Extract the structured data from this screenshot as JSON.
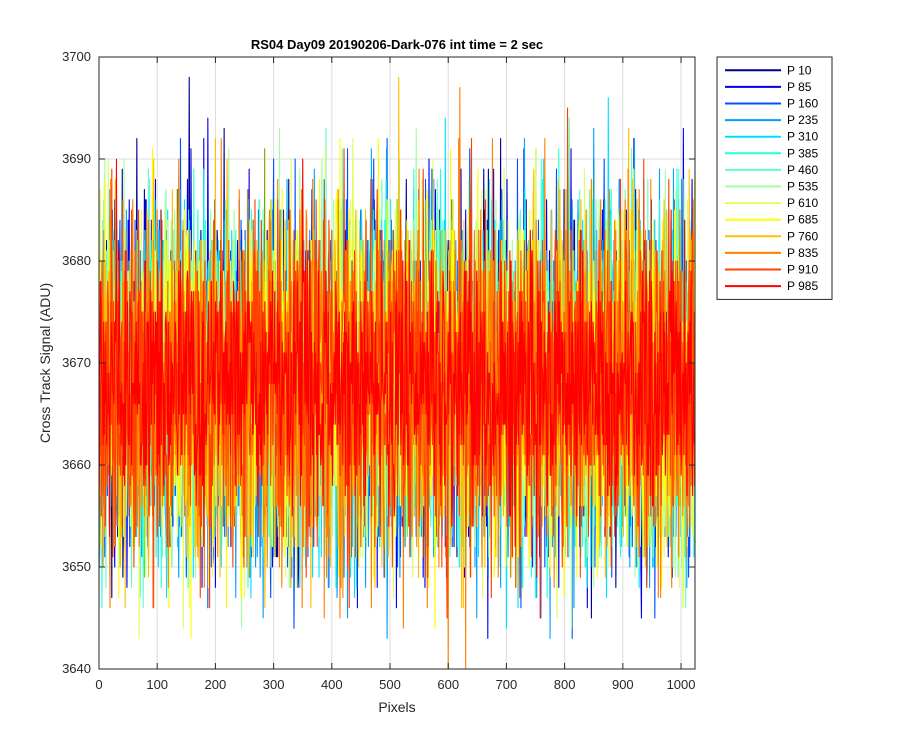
{
  "chart_data": {
    "type": "line",
    "title": "RS04 Day09 20190206-Dark-076 int time = 2 sec",
    "xlabel": "Pixels",
    "ylabel": "Cross Track Signal (ADU)",
    "xlim": [
      0,
      1024
    ],
    "ylim": [
      3640,
      3700
    ],
    "xticks": [
      0,
      100,
      200,
      300,
      400,
      500,
      600,
      700,
      800,
      900,
      1000
    ],
    "yticks": [
      3640,
      3650,
      3660,
      3670,
      3680,
      3690,
      3700
    ],
    "grid": true,
    "legend_position": "outside-right",
    "n_points": 1024,
    "series": [
      {
        "name": "P 10",
        "color": "#00008F",
        "mean": 3668,
        "std": 8.5,
        "spikes": [
          [
            155,
            3698
          ],
          [
            215,
            3693
          ],
          [
            65,
            3692
          ]
        ]
      },
      {
        "name": "P 85",
        "color": "#0000EF",
        "mean": 3668,
        "std": 8.5,
        "spikes": [
          [
            180,
            3692
          ],
          [
            258,
            3689
          ]
        ]
      },
      {
        "name": "P 160",
        "color": "#0050FF",
        "mean": 3668,
        "std": 8.5,
        "spikes": [
          [
            140,
            3692
          ],
          [
            300,
            3690
          ]
        ]
      },
      {
        "name": "P 235",
        "color": "#00A0FF",
        "mean": 3668,
        "std": 8.5,
        "spikes": [
          [
            775,
            3643
          ],
          [
            850,
            3693
          ],
          [
            282,
            3645
          ]
        ]
      },
      {
        "name": "P 310",
        "color": "#00DFFF",
        "mean": 3668,
        "std": 8.5,
        "spikes": [
          [
            700,
            3644
          ],
          [
            720,
            3646
          ]
        ]
      },
      {
        "name": "P 385",
        "color": "#20FFDF",
        "mean": 3668,
        "std": 8.5,
        "spikes": [
          [
            640,
            3690
          ],
          [
            180,
            3689
          ]
        ]
      },
      {
        "name": "P 460",
        "color": "#60FFBF",
        "mean": 3668,
        "std": 8.5,
        "spikes": [
          [
            390,
            3693
          ],
          [
            760,
            3690
          ]
        ]
      },
      {
        "name": "P 535",
        "color": "#A0FF9F",
        "mean": 3668,
        "std": 8.5,
        "spikes": [
          [
            245,
            3644
          ],
          [
            545,
            3693
          ]
        ]
      },
      {
        "name": "P 610",
        "color": "#DFFF5F",
        "mean": 3668,
        "std": 8.5,
        "spikes": [
          [
            145,
            3644
          ],
          [
            330,
            3690
          ]
        ]
      },
      {
        "name": "P 685",
        "color": "#FFFF00",
        "mean": 3668,
        "std": 8.5,
        "spikes": [
          [
            480,
            3692
          ]
        ]
      },
      {
        "name": "P 760",
        "color": "#FFBF00",
        "mean": 3668,
        "std": 8.5,
        "spikes": [
          [
            515,
            3698
          ],
          [
            200,
            3692
          ],
          [
            910,
            3693
          ],
          [
            45,
            3646
          ]
        ]
      },
      {
        "name": "P 835",
        "color": "#FF8000",
        "mean": 3668,
        "std": 8.5,
        "spikes": [
          [
            620,
            3697
          ],
          [
            600,
            3640
          ],
          [
            630,
            3640
          ],
          [
            210,
            3692
          ]
        ]
      },
      {
        "name": "P 910",
        "color": "#FF4000",
        "mean": 3668,
        "std": 8.5,
        "spikes": [
          [
            598,
            3645
          ],
          [
            430,
            3646
          ],
          [
            805,
            3695
          ]
        ]
      },
      {
        "name": "P 985",
        "color": "#FF0000",
        "mean": 3668,
        "std": 6.2,
        "spikes": [
          [
            30,
            3690
          ],
          [
            350,
            3690
          ]
        ]
      }
    ]
  }
}
